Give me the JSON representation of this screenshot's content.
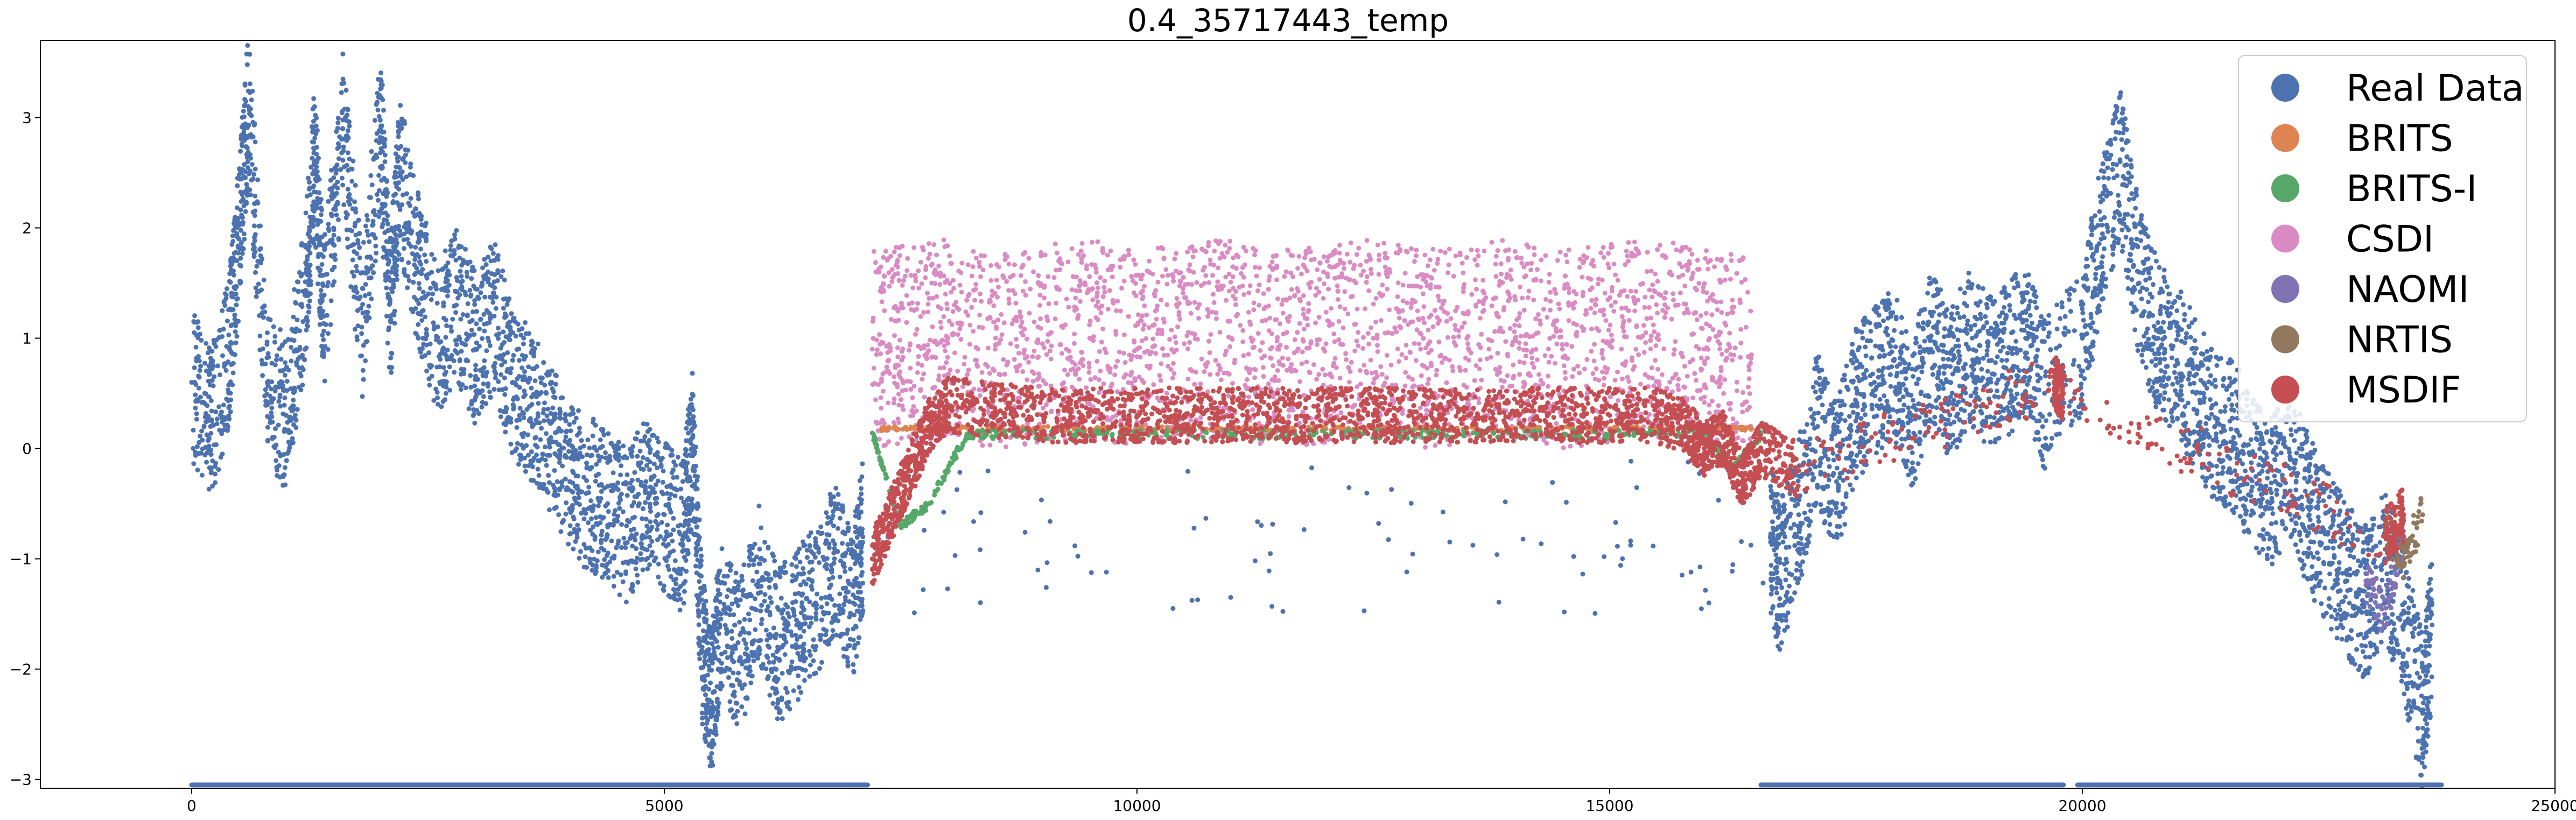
{
  "chart_data": {
    "type": "scatter",
    "title": "0.4_35717443_temp",
    "xlabel": "",
    "ylabel": "",
    "xlim": [
      -1600,
      25000
    ],
    "ylim": [
      -3.08,
      3.7
    ],
    "xticks": [
      0,
      5000,
      10000,
      15000,
      20000,
      25000
    ],
    "yticks": [
      -3,
      -2,
      -1,
      0,
      1,
      2,
      3
    ],
    "grid": false,
    "legend_position": "top-right",
    "series": [
      {
        "name": "Real Data",
        "color": "#4c72b0",
        "x": [
          0,
          200,
          400,
          500,
          600,
          800,
          1000,
          1200,
          1300,
          1400,
          1600,
          1800,
          2000,
          2100,
          2200,
          2400,
          2600,
          2800,
          3000,
          3200,
          3400,
          3600,
          3800,
          4000,
          4200,
          4400,
          4600,
          4800,
          5000,
          5200,
          5300,
          5400,
          5500,
          5600,
          5800,
          6000,
          6200,
          6400,
          6600,
          6800,
          7000,
          7100,
          16700,
          16800,
          17000,
          17200,
          17400,
          17600,
          17800,
          18000,
          18200,
          18400,
          18600,
          18800,
          19000,
          19200,
          19400,
          19600,
          20000,
          20200,
          20400,
          20600,
          20800,
          21000,
          21200,
          21400,
          21600,
          21800,
          22000,
          22200,
          22400,
          22600,
          22800,
          23000,
          23200,
          23400,
          23600,
          23700
        ],
        "y": [
          0.6,
          0.2,
          0.9,
          1.9,
          3.1,
          0.6,
          0.3,
          1.4,
          2.6,
          1.2,
          2.9,
          1.1,
          2.9,
          1.2,
          2.5,
          1.6,
          1.0,
          1.3,
          0.9,
          1.2,
          0.6,
          0.4,
          0.1,
          -0.3,
          -0.4,
          -0.5,
          -0.7,
          -0.4,
          -0.6,
          -0.8,
          0.1,
          -1.8,
          -2.3,
          -1.5,
          -1.9,
          -1.2,
          -1.8,
          -1.6,
          -1.4,
          -1.0,
          -1.4,
          -0.8,
          -0.8,
          -1.2,
          -0.6,
          0.2,
          -0.3,
          0.4,
          0.6,
          0.8,
          0.3,
          0.9,
          0.6,
          0.9,
          0.7,
          0.8,
          1.0,
          0.5,
          1.0,
          1.9,
          2.6,
          1.5,
          1.0,
          0.8,
          0.5,
          0.2,
          0.1,
          -0.2,
          -0.4,
          -0.1,
          -0.6,
          -0.9,
          -1.2,
          -1.4,
          -1.0,
          -1.6,
          -2.4,
          -1.6
        ],
        "spread": 0.7
      },
      {
        "name": "BRITS",
        "color": "#dd8452",
        "x": [
          7300,
          8000,
          9000,
          10000,
          11000,
          12000,
          13000,
          14000,
          15000,
          16000,
          16500
        ],
        "y": [
          0.18,
          0.18,
          0.18,
          0.18,
          0.18,
          0.18,
          0.18,
          0.18,
          0.18,
          0.18,
          0.18
        ],
        "spread": 0.02
      },
      {
        "name": "BRITS-I",
        "color": "#55a868",
        "x": [
          7200,
          7500,
          7800,
          8200,
          9000,
          10000,
          11000,
          12000,
          13000,
          14000,
          15000,
          16000,
          16300,
          16600
        ],
        "y": [
          0.14,
          -0.7,
          -0.5,
          0.13,
          0.13,
          0.13,
          0.13,
          0.13,
          0.13,
          0.13,
          0.13,
          0.13,
          -0.2,
          0.13
        ],
        "spread": 0.04
      },
      {
        "name": "CSDI",
        "color": "#da8bc3",
        "x": [
          7200,
          7600,
          8000,
          8500,
          9000,
          9500,
          10000,
          10500,
          11000,
          11500,
          12000,
          12500,
          13000,
          13500,
          14000,
          14500,
          15000,
          15500,
          16000,
          16500
        ],
        "y": [
          0.9,
          0.95,
          1.0,
          0.9,
          0.95,
          1.0,
          0.9,
          0.95,
          1.0,
          0.9,
          0.95,
          1.0,
          0.9,
          0.95,
          1.0,
          0.9,
          0.95,
          1.0,
          0.9,
          0.85
        ],
        "spread": 0.9
      },
      {
        "name": "NAOMI",
        "color": "#8172b3",
        "x": [
          23000,
          23200,
          23400
        ],
        "y": [
          -1.2,
          -1.5,
          -0.8
        ],
        "spread": 0.2
      },
      {
        "name": "NRTIS",
        "color": "#937860",
        "x": [
          23200,
          23400,
          23600
        ],
        "y": [
          -0.7,
          -1.0,
          -0.6
        ],
        "spread": 0.2
      },
      {
        "name": "MSDIF",
        "color": "#c44e52",
        "x": [
          7200,
          7400,
          7600,
          7800,
          8000,
          8500,
          9000,
          9500,
          10000,
          10500,
          11000,
          11500,
          12000,
          12500,
          13000,
          13500,
          14000,
          14500,
          15000,
          15500,
          15800,
          16000,
          16200,
          16400,
          16600,
          17000,
          19700,
          19800,
          23200,
          23400
        ],
        "y": [
          -1.0,
          -0.6,
          -0.2,
          0.2,
          0.4,
          0.35,
          0.3,
          0.3,
          0.3,
          0.3,
          0.3,
          0.3,
          0.3,
          0.3,
          0.3,
          0.3,
          0.3,
          0.3,
          0.3,
          0.3,
          0.2,
          0.0,
          0.1,
          -0.3,
          0.0,
          -0.2,
          0.6,
          0.5,
          -0.8,
          -0.6
        ],
        "spread": 0.25
      }
    ],
    "real_data_bottom_runs": [
      [
        0,
        7150
      ],
      [
        16600,
        19800
      ],
      [
        19950,
        23800
      ]
    ],
    "real_data_bottom_y": -3.05
  }
}
